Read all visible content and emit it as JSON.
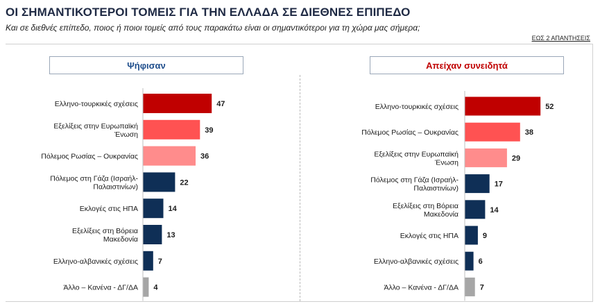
{
  "title": "ΟΙ ΣΗΜΑΝΤΙΚΟΤΕΡΟΙ ΤΟΜΕΙΣ ΓΙΑ ΤΗΝ ΕΛΛΑΔΑ ΣΕ ΔΙΕΘΝΕΣ ΕΠΙΠΕΔΟ",
  "subtitle": "Και σε διεθνές επίπεδο, ποιος ή ποιοι τομείς από τους παρακάτω είναι οι σημαντικότεροι για τη χώρα μας σήμερα;",
  "note": "ΕΩΣ 2 ΑΠΑΝΤΗΣΕΙΣ",
  "colors": {
    "dark_red": "#c00000",
    "red": "#ff5252",
    "pink": "#ff8c8c",
    "navy": "#0f2f56",
    "gray": "#a6a6a6"
  },
  "chart_data": [
    {
      "type": "bar",
      "orientation": "horizontal",
      "title": "Ψήφισαν",
      "categories": [
        [
          "Ελληνο-τουρκικές σχέσεις"
        ],
        [
          "Εξελίξεις στην Ευρωπαϊκή",
          "Ένωση"
        ],
        [
          "Πόλεμος Ρωσίας – Ουκρανίας"
        ],
        [
          "Πόλεμος στη Γάζα (Ισραήλ-",
          "Παλαιστινίων)"
        ],
        [
          "Εκλογές στις ΗΠΑ"
        ],
        [
          "Εξελίξεις στη Βόρεια",
          "Μακεδονία"
        ],
        [
          "Ελληνο-αλβανικές σχέσεις"
        ],
        [
          "Άλλο – Κανένα - ΔΓ/ΔΑ"
        ]
      ],
      "values": [
        47,
        39,
        36,
        22,
        14,
        13,
        7,
        4
      ],
      "colors": [
        "#c00000",
        "#ff5252",
        "#ff8c8c",
        "#0f2f56",
        "#0f2f56",
        "#0f2f56",
        "#0f2f56",
        "#a6a6a6"
      ]
    },
    {
      "type": "bar",
      "orientation": "horizontal",
      "title": "Απείχαν συνειδητά",
      "categories": [
        [
          "Ελληνο-τουρκικές σχέσεις"
        ],
        [
          "Πόλεμος Ρωσίας – Ουκρανίας"
        ],
        [
          "Εξελίξεις στην Ευρωπαϊκή",
          "Ένωση"
        ],
        [
          "Πόλεμος στη Γάζα (Ισραήλ-",
          "Παλαιστινίων)"
        ],
        [
          "Εξελίξεις στη Βόρεια",
          "Μακεδονία"
        ],
        [
          "Εκλογές στις ΗΠΑ"
        ],
        [
          "Ελληνο-αλβανικές σχέσεις"
        ],
        [
          "Άλλο – Κανένα - ΔΓ/ΔΑ"
        ]
      ],
      "values": [
        52,
        38,
        29,
        17,
        14,
        9,
        6,
        7
      ],
      "colors": [
        "#c00000",
        "#ff5252",
        "#ff8c8c",
        "#0f2f56",
        "#0f2f56",
        "#0f2f56",
        "#0f2f56",
        "#a6a6a6"
      ]
    }
  ]
}
